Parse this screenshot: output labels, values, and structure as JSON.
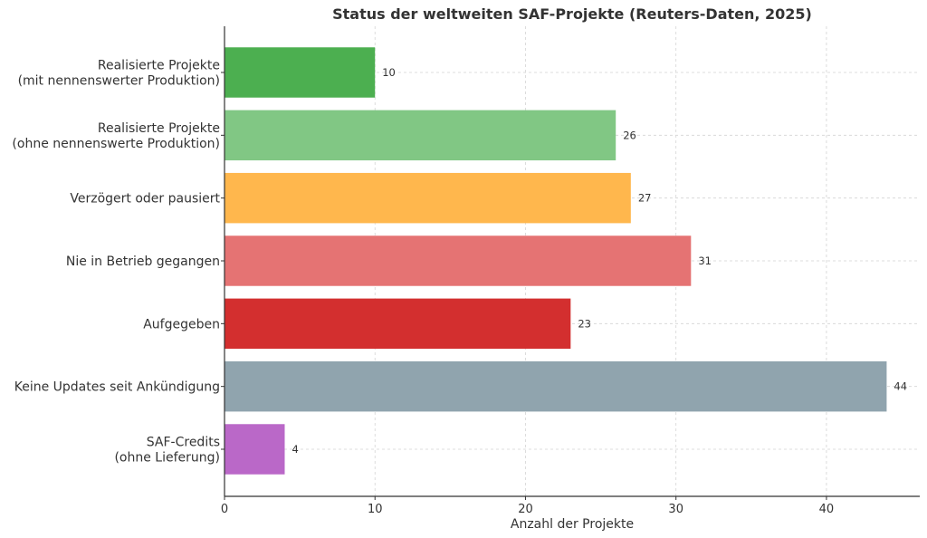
{
  "chart_data": {
    "type": "bar",
    "orientation": "horizontal",
    "title": "Status der weltweiten SAF-Projekte (Reuters-Daten, 2025)",
    "xlabel": "Anzahl der Projekte",
    "ylabel": "",
    "xlim": [
      0,
      46.2
    ],
    "xticks": [
      0,
      10,
      20,
      30,
      40
    ],
    "grid": true,
    "legend": "none",
    "categories": [
      [
        "Realisierte Projekte",
        "(mit nennenswerter Produktion)"
      ],
      [
        "Realisierte Projekte",
        "(ohne nennenswerte Produktion)"
      ],
      [
        "Verzögert oder pausiert"
      ],
      [
        "Nie in Betrieb gegangen"
      ],
      [
        "Aufgegeben"
      ],
      [
        "Keine Updates seit Ankündigung"
      ],
      [
        "SAF-Credits",
        "(ohne Lieferung)"
      ]
    ],
    "values": [
      10,
      26,
      27,
      31,
      23,
      44,
      4
    ],
    "value_labels": [
      "10",
      "26",
      "27",
      "31",
      "23",
      "44",
      "4"
    ],
    "colors": [
      "#4caf50",
      "#81c784",
      "#ffb74d",
      "#e57373",
      "#d32f2f",
      "#90a4ae",
      "#ba68c8"
    ]
  }
}
